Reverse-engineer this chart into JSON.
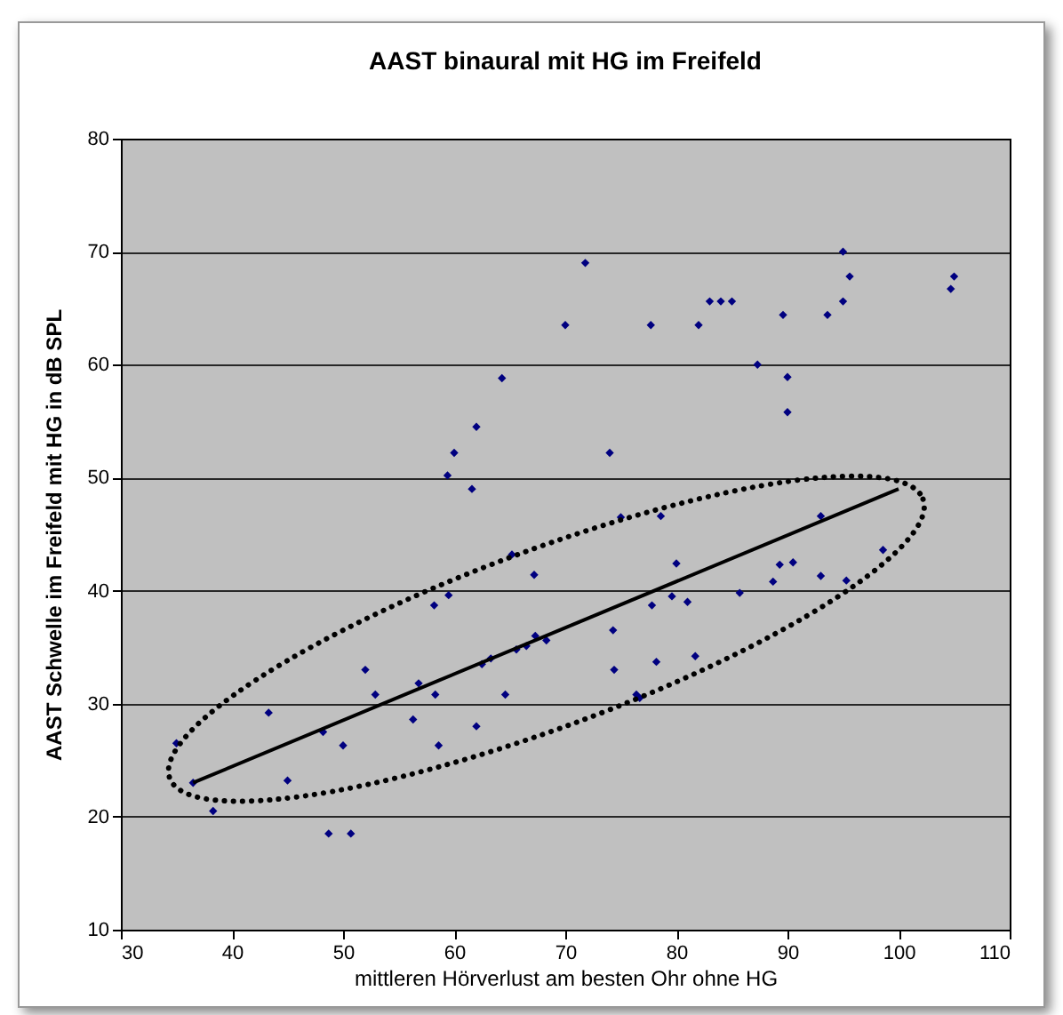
{
  "chart_data": {
    "type": "scatter",
    "title": "AAST binaural mit HG im Freifeld",
    "xlabel": "mittleren Hörverlust am besten Ohr ohne HG",
    "ylabel": "AAST Schwelle im Freifeld mit HG in dB SPL",
    "xlim": [
      30,
      110
    ],
    "xticks": [
      30,
      40,
      50,
      60,
      70,
      80,
      90,
      100,
      110
    ],
    "ylim": [
      10,
      80
    ],
    "yticks": [
      10,
      20,
      30,
      40,
      50,
      60,
      70,
      80
    ],
    "grid": "y",
    "series": [
      {
        "marker": "diamond",
        "color": "#000080",
        "x": [
          35,
          36.5,
          38.3,
          43.3,
          45,
          48.2,
          48.7,
          50,
          50.7,
          52,
          52.9,
          56.3,
          56.8,
          58.2,
          58.3,
          58.6,
          59.4,
          59.5,
          60,
          61.6,
          62,
          62,
          62.5,
          63.3,
          64.3,
          64.6,
          65.2,
          65.6,
          66.5,
          67.2,
          67.3,
          68.3,
          70,
          71.8,
          74,
          74.3,
          74.4,
          75,
          76.4,
          76.7,
          77.7,
          77.8,
          78.2,
          78.6,
          79.6,
          80,
          81,
          81.7,
          82,
          83,
          84,
          85,
          85.7,
          87.3,
          88.7,
          89.3,
          89.6,
          90,
          90,
          90.5,
          93,
          93,
          93.6,
          95,
          95,
          95.3,
          95.6,
          98.6,
          104.7,
          105
        ],
        "values": [
          26.5,
          23,
          20.5,
          29.2,
          23.2,
          27.5,
          18.5,
          26.3,
          18.5,
          33,
          30.8,
          28.6,
          31.8,
          38.7,
          30.8,
          26.3,
          50.2,
          39.6,
          52.2,
          49,
          54.5,
          28,
          33.5,
          34,
          58.8,
          30.8,
          43.2,
          34.8,
          35.1,
          41.4,
          36,
          35.6,
          63.5,
          69,
          52.2,
          36.5,
          33,
          46.5,
          30.8,
          30.5,
          63.5,
          38.7,
          33.7,
          46.6,
          39.5,
          42.4,
          39,
          34.2,
          63.5,
          65.6,
          65.6,
          65.6,
          39.8,
          60,
          40.8,
          42.3,
          64.4,
          55.8,
          58.9,
          42.5,
          41.3,
          46.6,
          64.4,
          70,
          65.6,
          40.9,
          67.8,
          43.6,
          66.7,
          67.8
        ]
      },
      {
        "type": "line",
        "color": "#000000",
        "x": [
          36.5,
          100
        ],
        "values": [
          23,
          49
        ]
      }
    ]
  }
}
